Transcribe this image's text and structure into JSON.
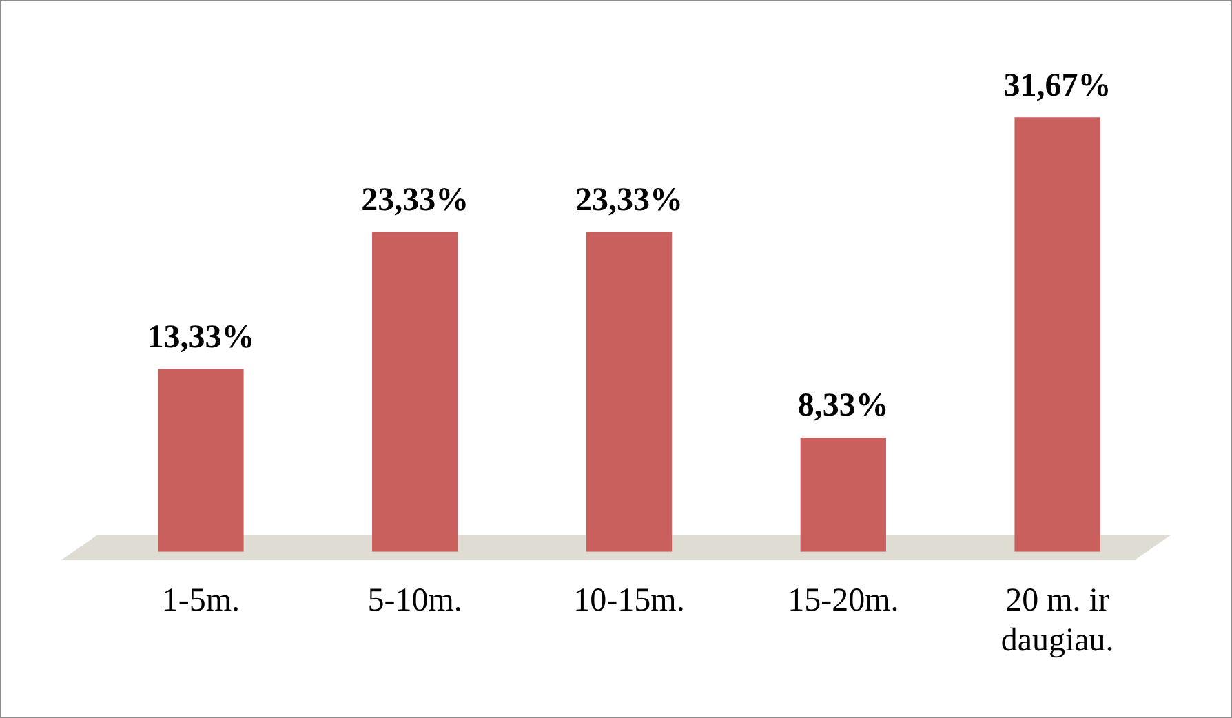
{
  "chart_data": {
    "type": "bar",
    "categories": [
      "1-5m.",
      "5-10m.",
      "10-15m.",
      "15-20m.",
      "20 m. ir daugiau."
    ],
    "values": [
      13.33,
      23.33,
      23.33,
      8.33,
      31.67
    ],
    "value_labels": [
      "13,33%",
      "23,33%",
      "23,33%",
      "8,33%",
      "31,67%"
    ],
    "color": "#c9605e",
    "tick_labels": "x",
    "grid": false,
    "legend": false
  }
}
